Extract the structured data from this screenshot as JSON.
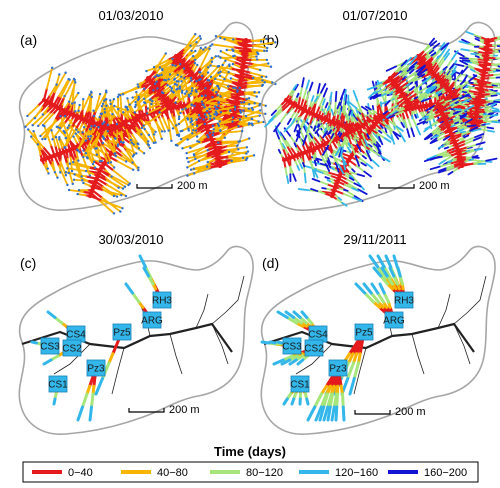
{
  "panels": [
    {
      "letter": "(a)",
      "date": "01/03/2010",
      "scale": "200 m",
      "pattern": "dense-early",
      "wells": []
    },
    {
      "letter": "(b)",
      "date": "01/07/2010",
      "scale": "200 m",
      "pattern": "dense-late",
      "wells": []
    },
    {
      "letter": "(c)",
      "date": "30/03/2010",
      "scale": "200 m",
      "pattern": "wells",
      "wells": [
        "RH3",
        "ARG",
        "Pz5",
        "CS4",
        "CS3",
        "CS2",
        "Pz3",
        "CS1"
      ]
    },
    {
      "letter": "(d)",
      "date": "29/11/2011",
      "scale": "200 m",
      "pattern": "wells",
      "wells": [
        "RH3",
        "ARG",
        "Pz5",
        "CS4",
        "CS3",
        "CS2",
        "Pz3",
        "CS1"
      ]
    }
  ],
  "legend": {
    "title": "Time (days)",
    "items": [
      {
        "label": "0−40",
        "color": "#e41a1c"
      },
      {
        "label": "40−80",
        "color": "#f7b500"
      },
      {
        "label": "80−120",
        "color": "#a6e67a"
      },
      {
        "label": "120−160",
        "color": "#33b7ea"
      },
      {
        "label": "160−200",
        "color": "#1414d6"
      }
    ]
  },
  "colors": {
    "boundary": "#a6a6a6",
    "network": "#222222",
    "well_box": "#33b7ea",
    "endpoint": "#2c6fd1"
  }
}
